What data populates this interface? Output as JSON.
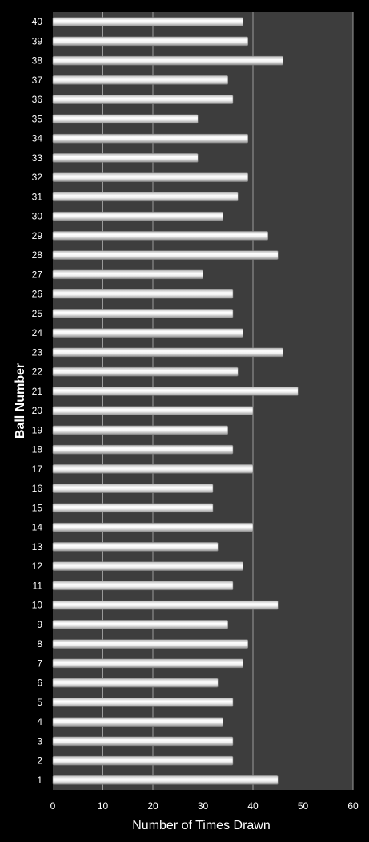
{
  "chart_data": {
    "type": "bar",
    "orientation": "horizontal",
    "categories": [
      "1",
      "2",
      "3",
      "4",
      "5",
      "6",
      "7",
      "8",
      "9",
      "10",
      "11",
      "12",
      "13",
      "14",
      "15",
      "16",
      "17",
      "18",
      "19",
      "20",
      "21",
      "22",
      "23",
      "24",
      "25",
      "26",
      "27",
      "28",
      "29",
      "30",
      "31",
      "32",
      "33",
      "34",
      "35",
      "36",
      "37",
      "38",
      "39",
      "40"
    ],
    "values": [
      45,
      36,
      36,
      34,
      36,
      33,
      38,
      39,
      35,
      45,
      36,
      38,
      33,
      40,
      32,
      32,
      40,
      36,
      35,
      40,
      49,
      37,
      46,
      38,
      36,
      36,
      30,
      45,
      43,
      34,
      37,
      39,
      29,
      39,
      29,
      36,
      35,
      46,
      39,
      38
    ],
    "xlabel": "Number of Times Drawn",
    "ylabel": "Ball Number",
    "xlim": [
      0,
      60
    ],
    "x_ticks": [
      "0",
      "10",
      "20",
      "30",
      "40",
      "50",
      "60"
    ],
    "grid": "vertical",
    "legend": "none",
    "colors": {
      "page_background": "#000000",
      "plot_background": "#3d3d3d",
      "gridline": "#9a9a9a",
      "bar_light": "#ffffff",
      "bar_dark": "#9c9c9c",
      "text": "#ffffff"
    }
  }
}
